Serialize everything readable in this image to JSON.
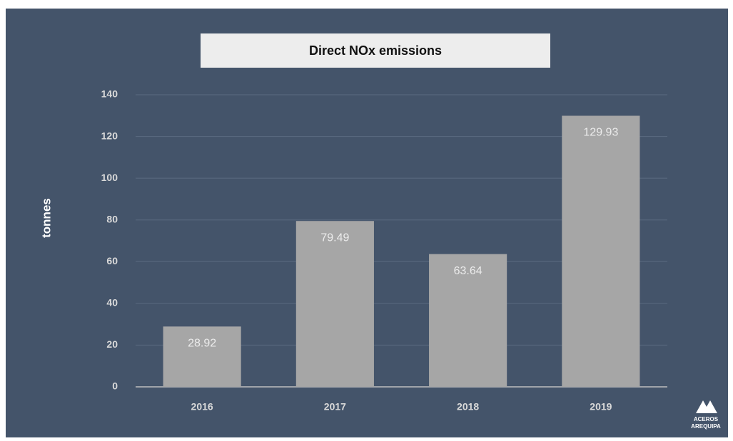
{
  "chart_data": {
    "type": "bar",
    "title": "Direct NOx emissions",
    "y_label": "tonnes",
    "categories": [
      "2016",
      "2017",
      "2018",
      "2019"
    ],
    "values": [
      28.92,
      79.49,
      63.64,
      129.93
    ],
    "color": "#a6a6a6",
    "ylim": [
      0,
      140
    ],
    "yticks": [
      0,
      20,
      40,
      60,
      80,
      100,
      120,
      140
    ],
    "grid": true
  },
  "logo": {
    "line1": "ACEROS",
    "line2": "AREQUIPA"
  }
}
